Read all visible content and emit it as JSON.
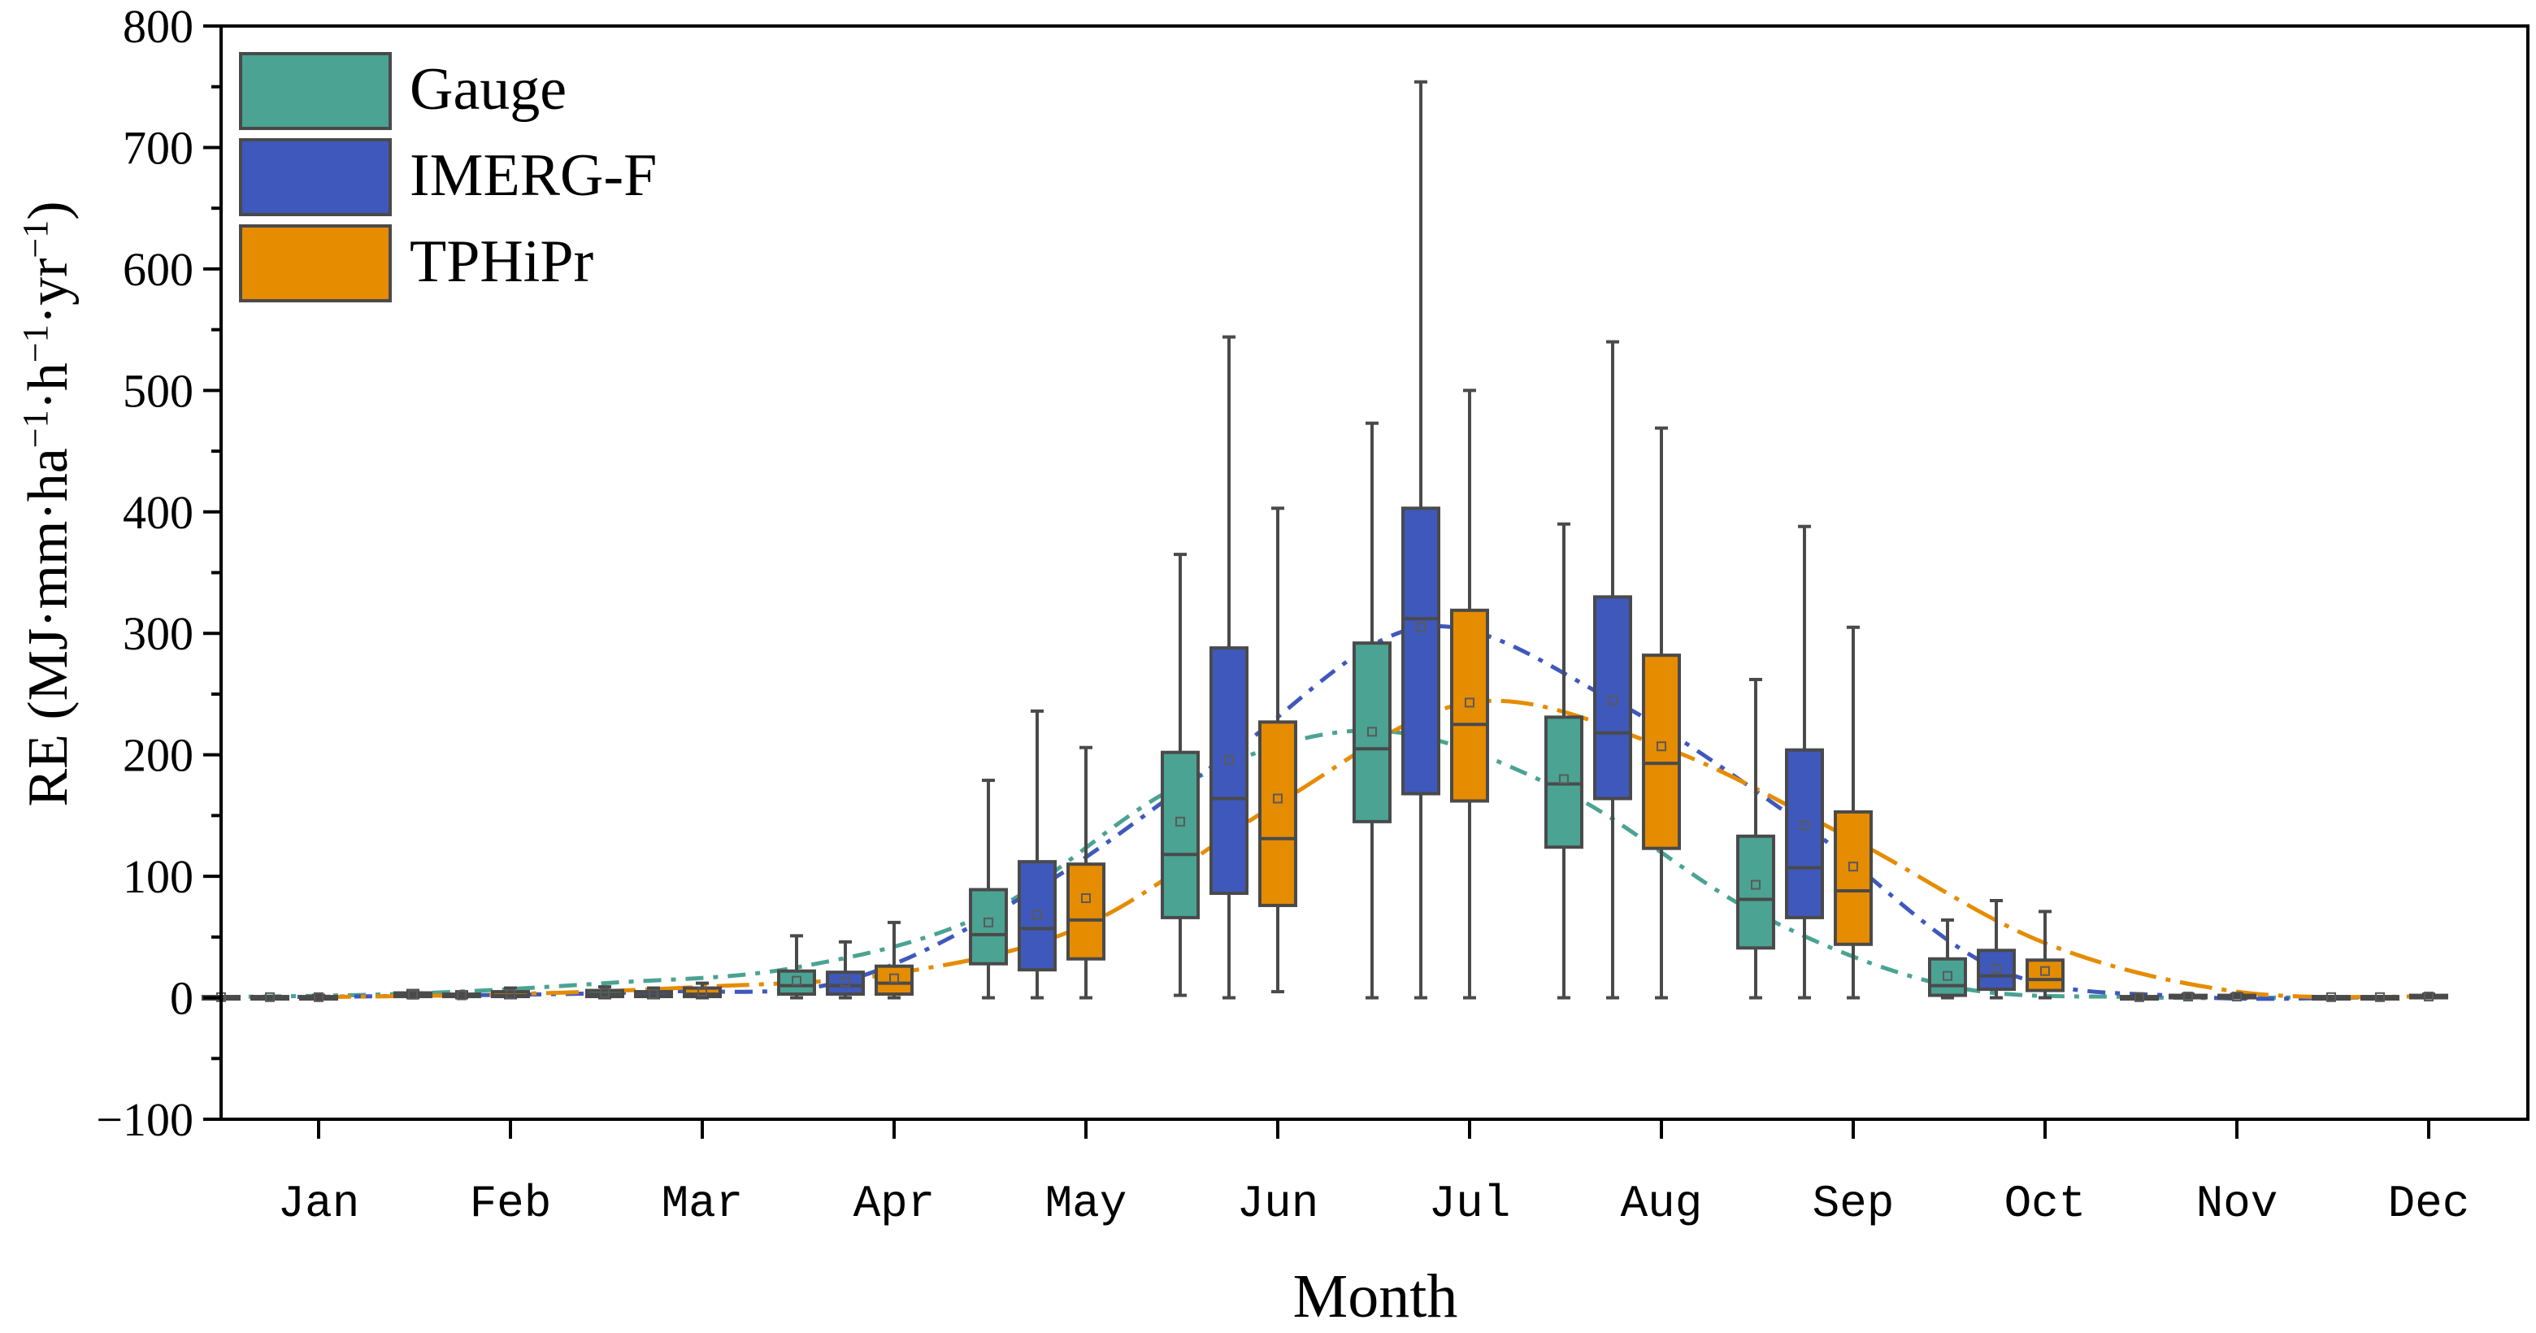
{
  "chart_data": {
    "type": "box",
    "xlabel": "Month",
    "ylabel_main": "RE (MJ·mm·ha",
    "ylabel_parts": [
      {
        "t": "RE (MJ·mm·ha",
        "sup": false
      },
      {
        "t": "−1",
        "sup": true
      },
      {
        "t": "·h",
        "sup": false
      },
      {
        "t": "−1",
        "sup": true
      },
      {
        "t": "·yr",
        "sup": false
      },
      {
        "t": "−1",
        "sup": true
      },
      {
        "t": ")",
        "sup": false
      }
    ],
    "ylim": [
      -100,
      800
    ],
    "yticks": [
      -100,
      0,
      100,
      200,
      300,
      400,
      500,
      600,
      700,
      800
    ],
    "ytick_labels": [
      "−100",
      "0",
      "100",
      "200",
      "300",
      "400",
      "500",
      "600",
      "700",
      "800"
    ],
    "categories": [
      "Jan",
      "Feb",
      "Mar",
      "Apr",
      "May",
      "Jun",
      "Jul",
      "Aug",
      "Sep",
      "Oct",
      "Nov",
      "Dec"
    ],
    "legend_position": "top-left",
    "grid": false,
    "series": [
      {
        "name": "Gauge",
        "color": "#4aa393",
        "mean_line_color": "#4aa393",
        "boxes": [
          {
            "min": 0,
            "q1": 0,
            "median": 0,
            "q3": 1,
            "max": 1,
            "mean": 0.5
          },
          {
            "min": 0,
            "q1": 1,
            "median": 2,
            "q3": 4,
            "max": 6,
            "mean": 2.5
          },
          {
            "min": 0,
            "q1": 1,
            "median": 3,
            "q3": 6,
            "max": 9,
            "mean": 4
          },
          {
            "min": 0,
            "q1": 3,
            "median": 10,
            "q3": 22,
            "max": 51,
            "mean": 14
          },
          {
            "min": 0,
            "q1": 28,
            "median": 52,
            "q3": 89,
            "max": 179,
            "mean": 62
          },
          {
            "min": 2,
            "q1": 66,
            "median": 118,
            "q3": 202,
            "max": 365,
            "mean": 145
          },
          {
            "min": 0,
            "q1": 145,
            "median": 205,
            "q3": 292,
            "max": 473,
            "mean": 219
          },
          {
            "min": 0,
            "q1": 124,
            "median": 176,
            "q3": 231,
            "max": 390,
            "mean": 180
          },
          {
            "min": 0,
            "q1": 41,
            "median": 81,
            "q3": 133,
            "max": 262,
            "mean": 93
          },
          {
            "min": 0,
            "q1": 2,
            "median": 10,
            "q3": 32,
            "max": 64,
            "mean": 18
          },
          {
            "min": 0,
            "q1": 0,
            "median": 0,
            "q3": 1,
            "max": 2,
            "mean": 0.5
          },
          {
            "min": 0,
            "q1": 0,
            "median": 0,
            "q3": 1,
            "max": 1,
            "mean": 0.5
          }
        ],
        "mean_line": [
          0.5,
          3.5,
          12,
          25,
          70,
          175,
          220,
          170,
          70,
          10,
          0.5,
          0.5
        ]
      },
      {
        "name": "IMERG-F",
        "color": "#3f58bb",
        "mean_line_color": "#3f58bb",
        "boxes": [
          {
            "min": 0,
            "q1": 0,
            "median": 0,
            "q3": 1,
            "max": 1,
            "mean": 0.5
          },
          {
            "min": 0,
            "q1": 1,
            "median": 2,
            "q3": 3,
            "max": 5,
            "mean": 2
          },
          {
            "min": 0,
            "q1": 1,
            "median": 2,
            "q3": 5,
            "max": 8,
            "mean": 3
          },
          {
            "min": 0,
            "q1": 3,
            "median": 10,
            "q3": 21,
            "max": 46,
            "mean": 13
          },
          {
            "min": 0,
            "q1": 23,
            "median": 57,
            "q3": 112,
            "max": 236,
            "mean": 68
          },
          {
            "min": 0,
            "q1": 86,
            "median": 164,
            "q3": 288,
            "max": 544,
            "mean": 196
          },
          {
            "min": 0,
            "q1": 168,
            "median": 312,
            "q3": 403,
            "max": 754,
            "mean": 305
          },
          {
            "min": 0,
            "q1": 164,
            "median": 218,
            "q3": 330,
            "max": 540,
            "mean": 245
          },
          {
            "min": 0,
            "q1": 66,
            "median": 107,
            "q3": 204,
            "max": 388,
            "mean": 142
          },
          {
            "min": 0,
            "q1": 7,
            "median": 18,
            "q3": 39,
            "max": 80,
            "mean": 24
          },
          {
            "min": 0,
            "q1": 0,
            "median": 1,
            "q3": 2,
            "max": 3,
            "mean": 1
          },
          {
            "min": 0,
            "q1": 0,
            "median": 0,
            "q3": 1,
            "max": 1,
            "mean": 0.5
          }
        ],
        "mean_line": [
          0.5,
          2,
          5,
          14,
          90,
          200,
          305,
          245,
          142,
          24,
          1,
          0.5
        ]
      },
      {
        "name": "TPHiPr",
        "color": "#e58c00",
        "mean_line_color": "#e58c00",
        "boxes": [
          {
            "min": 0,
            "q1": 0,
            "median": 0,
            "q3": 1,
            "max": 2,
            "mean": 0.5
          },
          {
            "min": 0,
            "q1": 1,
            "median": 2,
            "q3": 5,
            "max": 8,
            "mean": 3
          },
          {
            "min": 0,
            "q1": 1,
            "median": 3,
            "q3": 8,
            "max": 12,
            "mean": 5
          },
          {
            "min": 0,
            "q1": 3,
            "median": 12,
            "q3": 26,
            "max": 62,
            "mean": 16
          },
          {
            "min": 0,
            "q1": 32,
            "median": 64,
            "q3": 110,
            "max": 206,
            "mean": 82
          },
          {
            "min": 5,
            "q1": 76,
            "median": 131,
            "q3": 227,
            "max": 403,
            "mean": 164
          },
          {
            "min": 0,
            "q1": 162,
            "median": 225,
            "q3": 319,
            "max": 500,
            "mean": 243
          },
          {
            "min": 0,
            "q1": 123,
            "median": 193,
            "q3": 282,
            "max": 469,
            "mean": 207
          },
          {
            "min": 0,
            "q1": 44,
            "median": 88,
            "q3": 153,
            "max": 305,
            "mean": 108
          },
          {
            "min": 0,
            "q1": 6,
            "median": 15,
            "q3": 31,
            "max": 71,
            "mean": 22
          },
          {
            "min": 0,
            "q1": 0,
            "median": 1,
            "q3": 2,
            "max": 3,
            "mean": 1
          },
          {
            "min": 0,
            "q1": 0,
            "median": 1,
            "q3": 2,
            "max": 3,
            "mean": 1
          }
        ],
        "mean_line": [
          0.5,
          3,
          9,
          20,
          60,
          160,
          243,
          207,
          130,
          45,
          5,
          1
        ]
      }
    ]
  }
}
